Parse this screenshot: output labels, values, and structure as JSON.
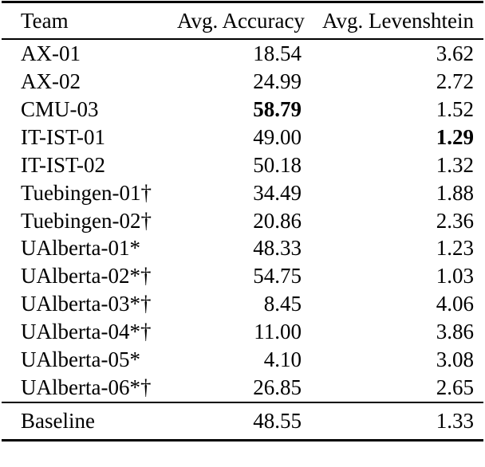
{
  "page": {
    "background_color": "#ffffff",
    "text_color": "#000000",
    "rule_color": "#000000"
  },
  "table": {
    "columns": [
      {
        "label": "Team",
        "align": "left"
      },
      {
        "label": "Avg. Accuracy",
        "align": "right"
      },
      {
        "label": "Avg. Levenshtein",
        "align": "right"
      }
    ],
    "rows": [
      {
        "team": "AX-01",
        "accuracy": "18.54",
        "levenshtein": "3.62",
        "bold": null
      },
      {
        "team": "AX-02",
        "accuracy": "24.99",
        "levenshtein": "2.72",
        "bold": null
      },
      {
        "team": "CMU-03",
        "accuracy": "58.79",
        "levenshtein": "1.52",
        "bold": "accuracy"
      },
      {
        "team": "IT-IST-01",
        "accuracy": "49.00",
        "levenshtein": "1.29",
        "bold": "levenshtein"
      },
      {
        "team": "IT-IST-02",
        "accuracy": "50.18",
        "levenshtein": "1.32",
        "bold": null
      },
      {
        "team": "Tuebingen-01†",
        "accuracy": "34.49",
        "levenshtein": "1.88",
        "bold": null
      },
      {
        "team": "Tuebingen-02†",
        "accuracy": "20.86",
        "levenshtein": "2.36",
        "bold": null
      },
      {
        "team": "UAlberta-01*",
        "accuracy": "48.33",
        "levenshtein": "1.23",
        "bold": null
      },
      {
        "team": "UAlberta-02*†",
        "accuracy": "54.75",
        "levenshtein": "1.03",
        "bold": null
      },
      {
        "team": "UAlberta-03*†",
        "accuracy": "8.45",
        "levenshtein": "4.06",
        "bold": null
      },
      {
        "team": "UAlberta-04*†",
        "accuracy": "11.00",
        "levenshtein": "3.86",
        "bold": null
      },
      {
        "team": "UAlberta-05*",
        "accuracy": "4.10",
        "levenshtein": "3.08",
        "bold": null
      },
      {
        "team": "UAlberta-06*†",
        "accuracy": "26.85",
        "levenshtein": "2.65",
        "bold": null
      }
    ],
    "footer_row": {
      "team": "Baseline",
      "accuracy": "48.55",
      "levenshtein": "1.33"
    }
  }
}
